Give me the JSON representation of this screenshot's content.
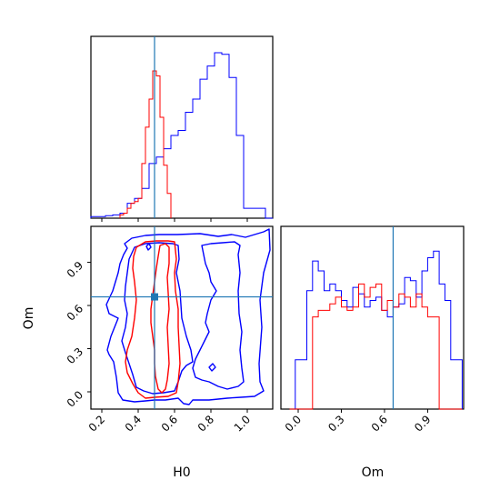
{
  "chart_data": {
    "type": "corner",
    "parameters": [
      "H0",
      "Om"
    ],
    "xlabel_left": "H0",
    "ylabel_left": "Om",
    "xlabel_right": "Om",
    "colors": {
      "sample_a": "#0000ff",
      "sample_b": "#ff0000",
      "truth": "#1f77b4"
    },
    "truth": {
      "H0": 0.49,
      "Om": 0.66
    },
    "h0_ticks": [
      0.2,
      0.4,
      0.6,
      0.8,
      1.0
    ],
    "h0_tick_labels": [
      "0.2",
      "0.4",
      "0.6",
      "0.8",
      "1.0"
    ],
    "om_ticks": [
      0.0,
      0.3,
      0.6,
      0.9
    ],
    "om_tick_labels": [
      "0.0",
      "0.3",
      "0.6",
      "0.9"
    ],
    "h0_range": [
      0.14,
      1.14
    ],
    "om_range": [
      -0.12,
      1.15
    ],
    "h0_hist": {
      "bin_edges": [
        0.14,
        0.18,
        0.22,
        0.26,
        0.3,
        0.34,
        0.38,
        0.42,
        0.46,
        0.5,
        0.54,
        0.58,
        0.62,
        0.66,
        0.7,
        0.74,
        0.78,
        0.82,
        0.86,
        0.9,
        0.94,
        0.98,
        1.02,
        1.06,
        1.1,
        1.14
      ],
      "blue": [
        0.01,
        0.01,
        0.015,
        0.02,
        0.03,
        0.09,
        0.12,
        0.18,
        0.33,
        0.37,
        0.42,
        0.5,
        0.53,
        0.64,
        0.72,
        0.84,
        0.92,
        1.0,
        0.99,
        0.85,
        0.5,
        0.06,
        0.06,
        0.06,
        0.0
      ],
      "red": [
        0.0,
        0.0,
        0.0,
        0.005,
        0.02,
        0.07,
        0.08,
        0.14,
        0.4,
        0.8,
        0.54,
        0.14,
        0.0,
        0.0,
        0.0,
        0.0,
        0.0,
        0.0,
        0.0,
        0.0,
        0.0,
        0.0,
        0.0,
        0.0,
        0.0
      ],
      "red_fine": {
        "bin_edges": [
          0.3,
          0.32,
          0.34,
          0.36,
          0.38,
          0.4,
          0.42,
          0.44,
          0.46,
          0.48,
          0.5,
          0.52,
          0.54,
          0.56,
          0.58
        ],
        "values": [
          0.02,
          0.03,
          0.06,
          0.09,
          0.1,
          0.12,
          0.33,
          0.55,
          0.72,
          0.89,
          0.86,
          0.61,
          0.32,
          0.15
        ]
      }
    },
    "om_hist": {
      "bin_edges": [
        -0.06,
        -0.02,
        0.02,
        0.06,
        0.1,
        0.14,
        0.18,
        0.22,
        0.26,
        0.3,
        0.34,
        0.38,
        0.42,
        0.46,
        0.5,
        0.54,
        0.58,
        0.62,
        0.66,
        0.7,
        0.74,
        0.78,
        0.82,
        0.86,
        0.9,
        0.94,
        0.98,
        1.02,
        1.06,
        1.1,
        1.14
      ],
      "blue": [
        0.0,
        0.3,
        0.3,
        0.72,
        0.9,
        0.84,
        0.72,
        0.76,
        0.72,
        0.66,
        0.62,
        0.74,
        0.7,
        0.62,
        0.66,
        0.68,
        0.6,
        0.56,
        0.62,
        0.64,
        0.8,
        0.78,
        0.68,
        0.84,
        0.92,
        0.96,
        0.76,
        0.66,
        0.3,
        0.3
      ],
      "red": [
        0.0,
        0.0,
        0.0,
        0.0,
        0.56,
        0.6,
        0.6,
        0.64,
        0.68,
        0.62,
        0.6,
        0.62,
        0.76,
        0.68,
        0.74,
        0.76,
        0.6,
        0.66,
        0.62,
        0.7,
        0.68,
        0.62,
        0.7,
        0.62,
        0.56,
        0.56,
        0.0,
        0.0,
        0.0,
        0.0
      ]
    }
  }
}
